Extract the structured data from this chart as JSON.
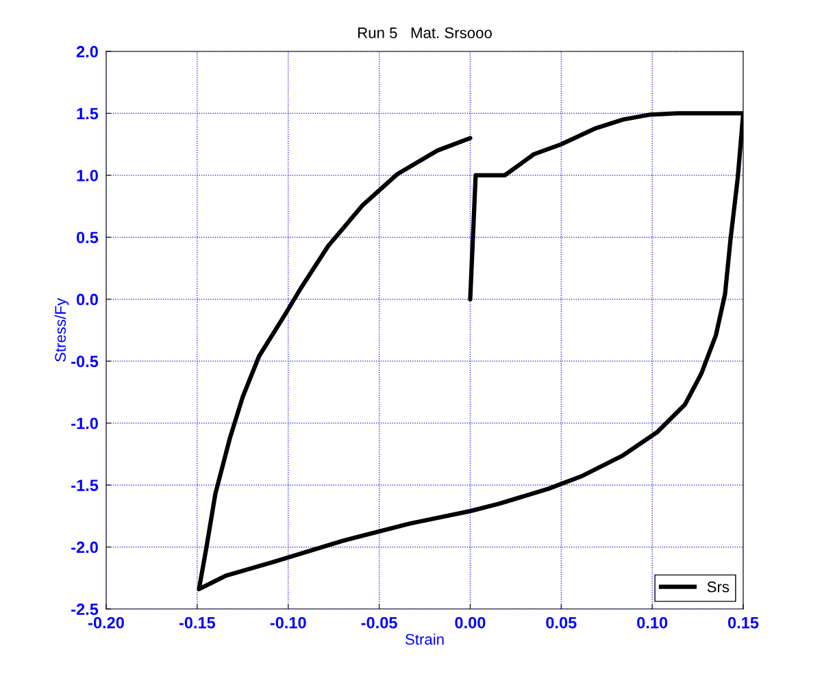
{
  "chart_data": {
    "type": "line",
    "title": "Run 5   Mat. Srsooo",
    "xlabel": "Strain",
    "ylabel": "Stress/Fy",
    "xlim": [
      -0.2,
      0.15
    ],
    "ylim": [
      -2.5,
      2.0
    ],
    "xticks": [
      {
        "value": -0.2,
        "label": "-0.20"
      },
      {
        "value": -0.15,
        "label": "-0.15"
      },
      {
        "value": -0.1,
        "label": "-0.10"
      },
      {
        "value": -0.05,
        "label": "-0.05"
      },
      {
        "value": 0,
        "label": "0.00"
      },
      {
        "value": 0.05,
        "label": "0.05"
      },
      {
        "value": 0.1,
        "label": "0.10"
      },
      {
        "value": 0.15,
        "label": "0.15"
      }
    ],
    "yticks": [
      {
        "value": -2.5,
        "label": "-2.5"
      },
      {
        "value": -2,
        "label": "-2.0"
      },
      {
        "value": -1.5,
        "label": "-1.5"
      },
      {
        "value": -1,
        "label": "-1.0"
      },
      {
        "value": -0.5,
        "label": "-0.5"
      },
      {
        "value": 0,
        "label": "0.0"
      },
      {
        "value": 0.5,
        "label": "0.5"
      },
      {
        "value": 1,
        "label": "1.0"
      },
      {
        "value": 1.5,
        "label": "1.5"
      },
      {
        "value": 2,
        "label": "2.0"
      }
    ],
    "grid": true,
    "legend": "bottom right",
    "marker": "none",
    "line_style": "solid",
    "series": [
      {
        "name": "Srs",
        "color": "#000000",
        "x": [
          0,
          0.003,
          0.019,
          0.035,
          0.05,
          0.069,
          0.084,
          0.099,
          0.114,
          0.15,
          0.147,
          0.143,
          0.14,
          0.135,
          0.127,
          0.118,
          0.103,
          0.084,
          0.061,
          0.043,
          0.016,
          0,
          -0.033,
          -0.07,
          -0.108,
          -0.134,
          -0.149,
          -0.145,
          -0.14,
          -0.132,
          -0.125,
          -0.116,
          -0.102,
          -0.093,
          -0.078,
          -0.059,
          -0.04,
          -0.018,
          0
        ],
        "values": [
          0,
          1.0,
          1.0,
          1.17,
          1.25,
          1.38,
          1.45,
          1.49,
          1.5,
          1.5,
          0.98,
          0.48,
          0.04,
          -0.29,
          -0.6,
          -0.85,
          -1.07,
          -1.26,
          -1.43,
          -1.53,
          -1.65,
          -1.71,
          -1.81,
          -1.95,
          -2.12,
          -2.23,
          -2.34,
          -2.01,
          -1.57,
          -1.12,
          -0.79,
          -0.46,
          -0.13,
          0.09,
          0.43,
          0.76,
          1.01,
          1.2,
          1.3
        ]
      }
    ]
  }
}
